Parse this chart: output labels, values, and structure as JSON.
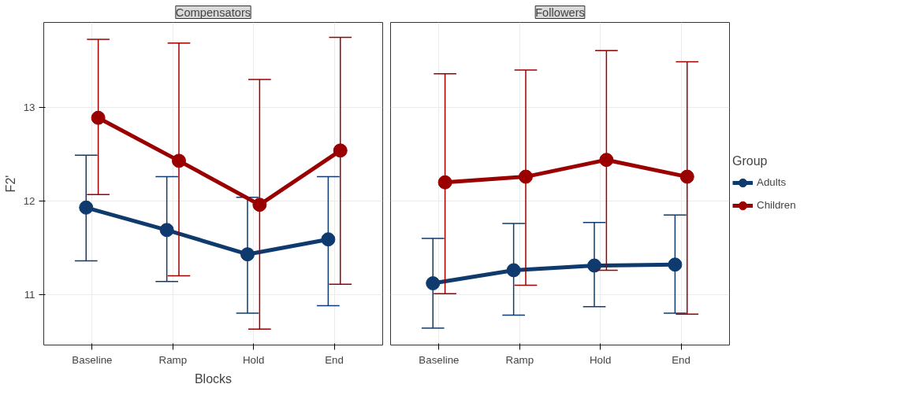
{
  "chart_data": [
    {
      "type": "line",
      "title": "Compensators",
      "xlabel": "Blocks",
      "ylabel": "F2'",
      "categories": [
        "Baseline",
        "Ramp",
        "Hold",
        "End"
      ],
      "ylim": [
        10.46,
        13.91
      ],
      "yticks": [
        11,
        12,
        13
      ],
      "grid": true,
      "marker": "circle",
      "series": [
        {
          "color": "#0e3a6e",
          "values": [
            11.93,
            11.69,
            11.43,
            11.59
          ],
          "errors": [
            [
              11.36,
              12.49
            ],
            [
              11.14,
              12.26
            ],
            [
              10.8,
              12.04
            ],
            [
              10.88,
              12.26
            ]
          ]
        },
        {
          "color": "#9b0000",
          "values": [
            12.89,
            12.43,
            11.96,
            12.54
          ],
          "errors": [
            [
              12.07,
              13.73
            ],
            [
              11.2,
              13.69
            ],
            [
              10.63,
              13.3
            ],
            [
              11.11,
              13.75
            ]
          ]
        }
      ]
    },
    {
      "type": "line",
      "title": "Followers",
      "legend_title": "Group",
      "categories": [
        "Baseline",
        "Ramp",
        "Hold",
        "End"
      ],
      "ylim": [
        10.46,
        13.91
      ],
      "yticks": [
        11,
        12,
        13
      ],
      "grid": true,
      "marker": "circle",
      "legend": "right",
      "tick_labels": "x",
      "series": [
        {
          "name": "Adults",
          "color": "#0e3a6e",
          "values": [
            11.12,
            11.26,
            11.31,
            11.32
          ],
          "errors": [
            [
              10.64,
              11.6
            ],
            [
              10.78,
              11.76
            ],
            [
              10.87,
              11.77
            ],
            [
              10.8,
              11.85
            ]
          ]
        },
        {
          "name": "Children",
          "color": "#9b0000",
          "values": [
            12.2,
            12.26,
            12.44,
            12.26
          ],
          "errors": [
            [
              11.01,
              13.36
            ],
            [
              11.1,
              13.4
            ],
            [
              11.26,
              13.61
            ],
            [
              10.79,
              13.49
            ]
          ]
        }
      ]
    }
  ]
}
